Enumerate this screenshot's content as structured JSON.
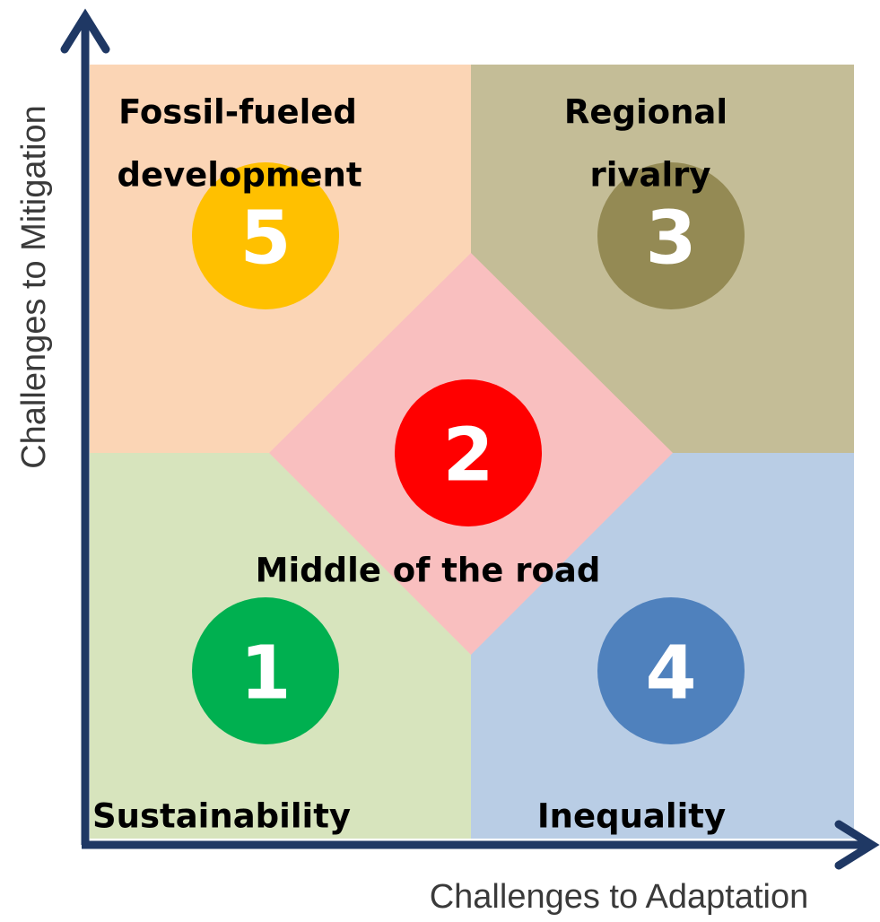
{
  "axes": {
    "x_label": "Challenges to Adaptation",
    "y_label": "Challenges to Mitigation"
  },
  "scenarios": [
    {
      "number": "1",
      "label_lines": [
        "Sustainability"
      ]
    },
    {
      "number": "2",
      "label_lines": [
        "Middle of the road"
      ]
    },
    {
      "number": "3",
      "label_lines": [
        "Regional",
        "rivalry"
      ]
    },
    {
      "number": "4",
      "label_lines": [
        "Inequality"
      ]
    },
    {
      "number": "5",
      "label_lines": [
        "Fossil-fueled",
        "development"
      ]
    }
  ]
}
